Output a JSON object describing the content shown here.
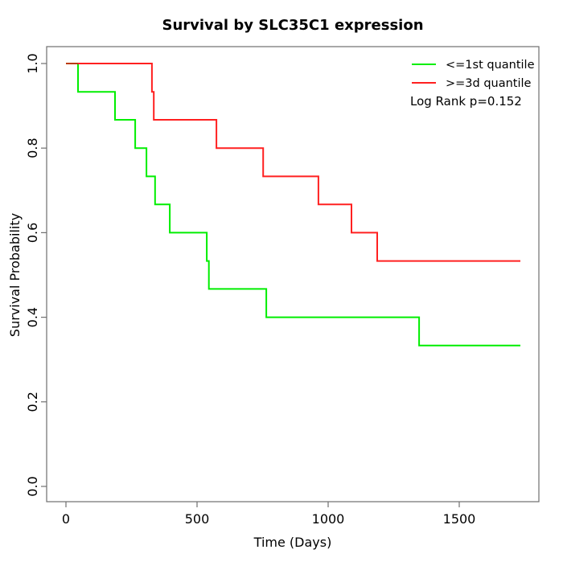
{
  "figure": {
    "title": "Survival by SLC35C1 expression",
    "background": "#ffffff",
    "axis_color": "#6f6f6f",
    "text_color": "#000000"
  },
  "chart_data": {
    "type": "line",
    "subtype": "kaplan_meier_step",
    "title": "Survival by SLC35C1 expression",
    "xlabel": "Time (Days)",
    "ylabel": "Survival Probability",
    "xlim": [
      0,
      1800
    ],
    "ylim": [
      0.0,
      1.0
    ],
    "xticks": [
      0,
      500,
      1000,
      1500
    ],
    "yticks": [
      {
        "value": 0.0,
        "label": "0.0"
      },
      {
        "value": 0.2,
        "label": "0.2"
      },
      {
        "value": 0.4,
        "label": "0.4"
      },
      {
        "value": 0.6,
        "label": "0.6"
      },
      {
        "value": 0.8,
        "label": "0.8"
      },
      {
        "value": 1.0,
        "label": "1.0"
      }
    ],
    "grid": false,
    "legend_position": "top-right",
    "annotation": "Log Rank p=0.152",
    "log_rank_p": 0.152,
    "overlap_color": "#bb3a00",
    "series": [
      {
        "name": "<=1st quantile",
        "color": "#00ee00",
        "start": {
          "t": 0,
          "s": 1.0
        },
        "steps": [
          {
            "t": 46,
            "s": 0.933
          },
          {
            "t": 187,
            "s": 0.867
          },
          {
            "t": 264,
            "s": 0.8
          },
          {
            "t": 307,
            "s": 0.733
          },
          {
            "t": 340,
            "s": 0.667
          },
          {
            "t": 396,
            "s": 0.6
          },
          {
            "t": 537,
            "s": 0.533
          },
          {
            "t": 545,
            "s": 0.467
          },
          {
            "t": 764,
            "s": 0.4
          },
          {
            "t": 1347,
            "s": 0.333
          }
        ],
        "end_t": 1733
      },
      {
        "name": ">=3d quantile",
        "color": "#ff2020",
        "start": {
          "t": 0,
          "s": 1.0
        },
        "steps": [
          {
            "t": 328,
            "s": 0.933
          },
          {
            "t": 335,
            "s": 0.867
          },
          {
            "t": 574,
            "s": 0.8
          },
          {
            "t": 752,
            "s": 0.733
          },
          {
            "t": 963,
            "s": 0.667
          },
          {
            "t": 1089,
            "s": 0.6
          },
          {
            "t": 1187,
            "s": 0.533
          }
        ],
        "end_t": 1733
      }
    ]
  }
}
